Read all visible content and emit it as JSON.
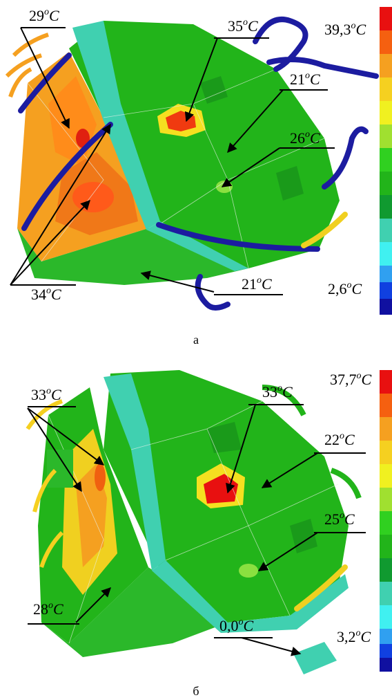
{
  "panels": [
    {
      "caption": "а",
      "scale_max": {
        "number": "39,3",
        "sup": "o",
        "unit": "C"
      },
      "scale_min": {
        "number": "2,6",
        "sup": "o",
        "unit": "C"
      },
      "labels": [
        {
          "number": "29",
          "sup": "o",
          "unit": "C"
        },
        {
          "number": "35",
          "sup": "o",
          "unit": "C"
        },
        {
          "number": "21",
          "sup": "o",
          "unit": "C"
        },
        {
          "number": "26",
          "sup": "o",
          "unit": "C"
        },
        {
          "number": "34",
          "sup": "o",
          "unit": "C"
        },
        {
          "number": "21",
          "sup": "o",
          "unit": "C"
        }
      ]
    },
    {
      "caption": "б",
      "scale_max": {
        "number": "37,7",
        "sup": "o",
        "unit": "C"
      },
      "scale_min": {
        "number": "3,2",
        "sup": "o",
        "unit": "C"
      },
      "labels": [
        {
          "number": "33",
          "sup": "o",
          "unit": "C"
        },
        {
          "number": "33",
          "sup": "o",
          "unit": "C"
        },
        {
          "number": "22",
          "sup": "o",
          "unit": "C"
        },
        {
          "number": "25",
          "sup": "o",
          "unit": "C"
        },
        {
          "number": "28",
          "sup": "o",
          "unit": "C"
        },
        {
          "number": "0,0",
          "sup": "o",
          "unit": "C"
        }
      ]
    }
  ]
}
